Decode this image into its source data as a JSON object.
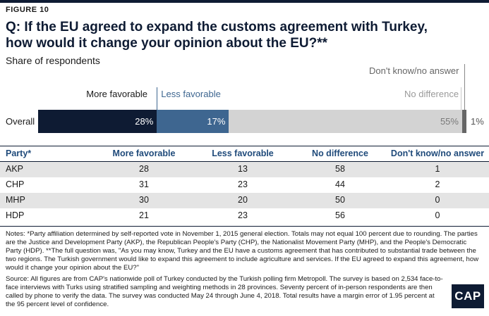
{
  "figure_label": "FIGURE 10",
  "title_line1": "Q: If the EU agreed to expand the customs agreement with Turkey,",
  "title_line2": "how would it change your opinion about the EU?**",
  "subtitle": "Share of respondents",
  "colors": {
    "more_favorable": "#0e1b33",
    "less_favorable": "#3e6690",
    "no_difference": "#d3d3d3",
    "dont_know": "#666666"
  },
  "chart_data": {
    "type": "bar",
    "orientation": "horizontal-stacked",
    "categories": [
      "Overall"
    ],
    "series": [
      {
        "name": "More favorable",
        "values": [
          28
        ],
        "label": "28%"
      },
      {
        "name": "Less favorable",
        "values": [
          17
        ],
        "label": "17%"
      },
      {
        "name": "No difference",
        "values": [
          55
        ],
        "label": "55%"
      },
      {
        "name": "Don't know/no answer",
        "values": [
          1
        ],
        "label": "1%"
      }
    ],
    "xlim": [
      0,
      101
    ]
  },
  "table": {
    "headers": [
      "Party*",
      "More favorable",
      "Less favorable",
      "No difference",
      "Don't know/no answer"
    ],
    "rows": [
      [
        "AKP",
        "28",
        "13",
        "58",
        "1"
      ],
      [
        "CHP",
        "31",
        "23",
        "44",
        "2"
      ],
      [
        "MHP",
        "30",
        "20",
        "50",
        "0"
      ],
      [
        "HDP",
        "21",
        "23",
        "56",
        "0"
      ]
    ]
  },
  "notes": "Notes: *Party affiliation determined by self-reported vote in November 1, 2015 general election. Totals may not equal 100 percent due to rounding. The parties are the Justice and Development Party (AKP), the Republican People's Party (CHP), the Nationalist Movement Party (MHP), and the People's Democratic Party (HDP). **The full question was, \"As you may know, Turkey and the EU have a customs agreement that has contributed to substantial trade between the two regions. The Turkish government would like to expand this agreement to include agriculture and services. If the EU agreed to expand this agreement, how would it change your opinion about the EU?\"",
  "source": "Source: All figures are from CAP's nationwide poll of Turkey conducted by the Turkish polling firm Metropoll. The survey is based on 2,534 face-to-face interviews with Turks using stratified sampling and weighting methods in 28 provinces. Seventy percent of in-person respondents are then called by phone to verify the data. The survey was conducted May 24 through June 4, 2018. Total results have a margin error of 1.95 percent at the 95 percent level of confidence.",
  "logo_text": "CAP"
}
